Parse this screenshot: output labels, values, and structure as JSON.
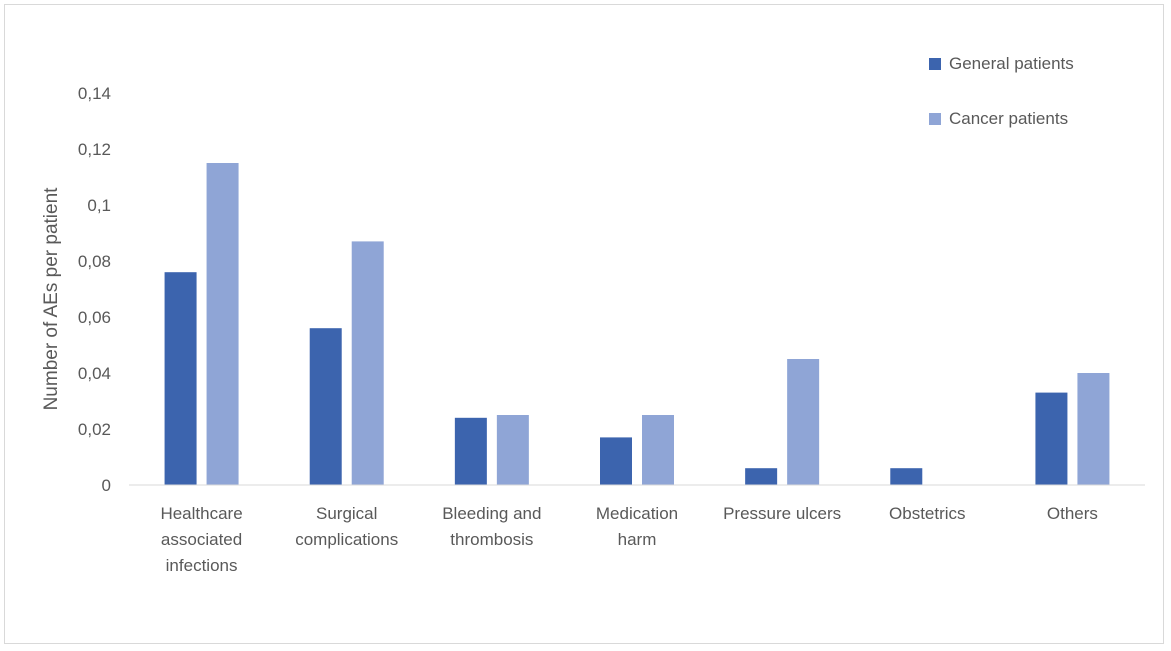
{
  "chart_data": {
    "type": "bar",
    "title": "",
    "xlabel": "",
    "ylabel": "Number of AEs per patient",
    "ylim": [
      0,
      0.14
    ],
    "yticks": [
      "0",
      "0,02",
      "0,04",
      "0,06",
      "0,08",
      "0,1",
      "0,12",
      "0,14"
    ],
    "categories": [
      [
        "Healthcare",
        "associated",
        "infections"
      ],
      [
        "Surgical",
        "complications"
      ],
      [
        "Bleeding and",
        "thrombosis"
      ],
      [
        "Medication",
        "harm"
      ],
      [
        "Pressure ulcers"
      ],
      [
        "Obstetrics"
      ],
      [
        "Others"
      ]
    ],
    "series": [
      {
        "name": "General patients",
        "color": "#3c64ae",
        "values": [
          0.076,
          0.056,
          0.024,
          0.017,
          0.006,
          0.006,
          0.033
        ]
      },
      {
        "name": "Cancer patients",
        "color": "#8fa5d6",
        "values": [
          0.115,
          0.087,
          0.025,
          0.025,
          0.045,
          0,
          0.04
        ]
      }
    ],
    "grid": false,
    "legend_position": "top-right"
  }
}
